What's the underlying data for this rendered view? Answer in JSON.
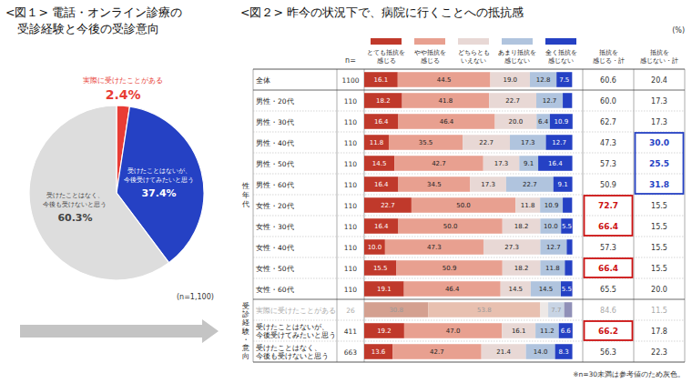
{
  "chart_data": [
    {
      "type": "pie",
      "title": "<図１> 電話・オンライン診療の",
      "subtitle": "　受診経験と今後の受診意向",
      "categories": [
        "実際に受けたことがある",
        "受けたことはないが、\n今後受けてみたいと思う",
        "受けたことはなく、\n今後も受けないと思う"
      ],
      "values": [
        2.4,
        37.4,
        60.3
      ],
      "value_labels": [
        "2.4%",
        "37.4%",
        "60.3%"
      ],
      "colors": [
        "#e83c35",
        "#2541c4",
        "#dddddd"
      ],
      "data_labels": true,
      "annotations": [
        "(n=1,100)"
      ]
    },
    {
      "type": "bar",
      "orientation": "horizontal",
      "stacked": true,
      "title": "<図２> 昨今の状況下で、病院に行くことへの抵抗感",
      "unit_label": "(%)",
      "categories": [
        "全体",
        "男性・20代",
        "男性・30代",
        "男性・40代",
        "男性・50代",
        "男性・60代",
        "女性・20代",
        "女性・30代",
        "女性・40代",
        "女性・50代",
        "女性・60代",
        "実際に受けたことがある",
        "受けたことはないが、今後受けてみたいと思う",
        "受けたことはなく、今後も受けないと思う"
      ],
      "series": [
        {
          "name": "とても抵抗を\n感じる",
          "color": "#c0392b",
          "values": [
            16.1,
            18.2,
            16.4,
            11.8,
            14.5,
            16.4,
            22.7,
            16.4,
            10.0,
            15.5,
            19.1,
            30.8,
            19.2,
            13.6
          ],
          "value_labels": [
            "16.1",
            "18.2",
            "16.4",
            "11.8",
            "14.5",
            "16.4",
            "22.7",
            "16.4",
            "10.0",
            "15.5",
            "19.1",
            "30.8",
            "19.2",
            "13.6"
          ]
        },
        {
          "name": "やや抵抗を\n感じる",
          "color": "#e8a090",
          "values": [
            44.5,
            41.8,
            46.4,
            35.5,
            42.7,
            34.5,
            50.0,
            50.0,
            47.3,
            50.9,
            46.4,
            53.8,
            47.0,
            42.7
          ],
          "value_labels": [
            "44.5",
            "41.8",
            "46.4",
            "35.5",
            "42.7",
            "34.5",
            "50.0",
            "50.0",
            "47.3",
            "50.9",
            "46.4",
            "53.8",
            "47.0",
            "42.7"
          ]
        },
        {
          "name": "どちらとも\nいえない",
          "color": "#e8d8d5",
          "values": [
            19.0,
            22.7,
            20.0,
            22.7,
            17.3,
            17.3,
            11.8,
            18.2,
            27.3,
            18.2,
            14.5,
            3.8,
            16.1,
            21.4
          ],
          "value_labels": [
            "19.0",
            "22.7",
            "20.0",
            "22.7",
            "17.3",
            "17.3",
            "11.8",
            "18.2",
            "27.3",
            "18.2",
            "14.5",
            null,
            "16.1",
            "21.4"
          ]
        },
        {
          "name": "あまり抵抗を\n感じない",
          "color": "#b0c4de",
          "values": [
            12.8,
            12.7,
            6.4,
            17.3,
            9.1,
            22.7,
            10.9,
            10.0,
            12.7,
            11.8,
            14.5,
            7.7,
            11.2,
            14.0
          ],
          "value_labels": [
            "12.8",
            "12.7",
            "6.4",
            "17.3",
            "9.1",
            "22.7",
            "10.9",
            "10.0",
            "12.7",
            "11.8",
            "14.5",
            "7.7",
            "11.2",
            "14.0"
          ]
        },
        {
          "name": "全く抵抗を\n感じない",
          "color": "#2541c4",
          "values": [
            7.5,
            4.5,
            10.9,
            12.7,
            16.4,
            9.1,
            4.5,
            5.5,
            2.7,
            3.6,
            5.5,
            3.8,
            6.6,
            8.3
          ],
          "value_labels": [
            "7.5",
            null,
            "10.9",
            "12.7",
            "16.4",
            "9.1",
            null,
            "5.5",
            null,
            null,
            "5.5",
            null,
            "6.6",
            "8.3"
          ]
        }
      ],
      "xlim": [
        0,
        105
      ],
      "tick_labels": false,
      "data_labels": true,
      "n_label": "n=",
      "n": [
        1100,
        110,
        110,
        110,
        110,
        110,
        110,
        110,
        110,
        110,
        110,
        26,
        411,
        663
      ],
      "summary_columns": [
        {
          "name": "抵抗を\n感じる・計",
          "values": [
            60.6,
            60.0,
            62.7,
            47.3,
            57.3,
            50.9,
            72.7,
            66.4,
            57.3,
            66.4,
            65.5,
            84.6,
            66.2,
            56.3
          ],
          "value_labels": [
            "60.6",
            "60.0",
            "62.7",
            "47.3",
            "57.3",
            "50.9",
            "72.7",
            "66.4",
            "57.3",
            "66.4",
            "65.5",
            "84.6",
            "66.2",
            "56.3"
          ],
          "highlight_rows": [
            6,
            7,
            9,
            12
          ],
          "highlight_color": "#cc1111"
        },
        {
          "name": "抵抗を\n感じない・計",
          "values": [
            20.4,
            17.3,
            17.3,
            30.0,
            25.5,
            31.8,
            15.5,
            15.5,
            15.5,
            15.5,
            20.0,
            11.5,
            17.8,
            22.3
          ],
          "value_labels": [
            "20.4",
            "17.3",
            "17.3",
            "30.0",
            "25.5",
            "31.8",
            "15.5",
            "15.5",
            "15.5",
            "15.5",
            "20.0",
            "11.5",
            "17.8",
            "22.3"
          ],
          "highlight_rows": [
            3,
            4,
            5
          ],
          "highlight_color": "#2541c4"
        }
      ],
      "row_groups": [
        {
          "label": "性\n年\n代",
          "start": 1,
          "count": 10
        },
        {
          "label": "受\n診\n経\n験\n・\n意\n向",
          "start": 11,
          "count": 3
        }
      ],
      "reference_rows": [
        11
      ],
      "reference_colors": [
        "#d4a090",
        "#e8c0b0",
        "#ede8e6",
        "#c8d4e4",
        "#9090b8"
      ],
      "note": "※n=30未満は参考値のため灰色。"
    }
  ]
}
